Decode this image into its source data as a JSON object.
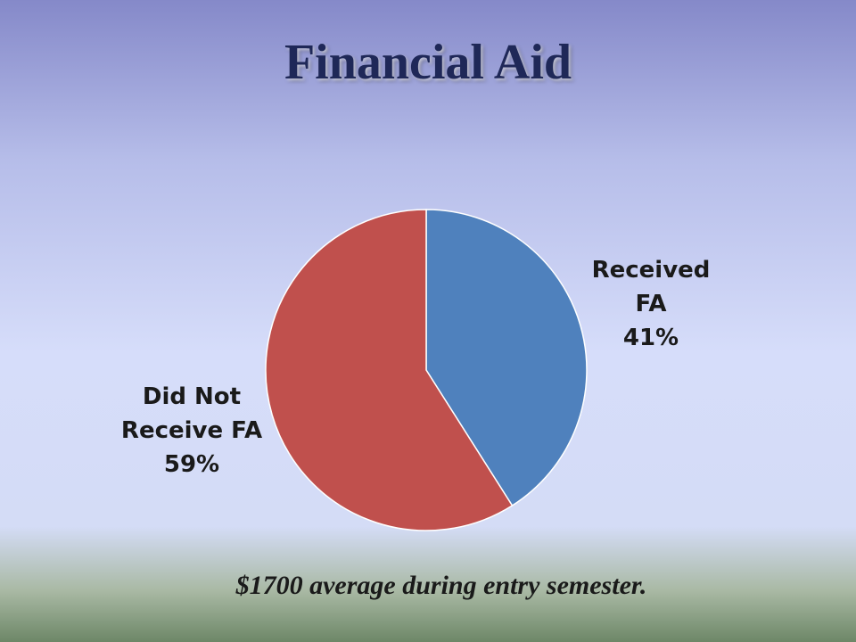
{
  "chart_data": {
    "type": "pie",
    "title": "Financial Aid",
    "categories": [
      "Received FA",
      "Did Not Receive FA"
    ],
    "values": [
      41,
      59
    ],
    "value_labels": [
      "41%",
      "59%"
    ],
    "colors": [
      "#4f81bd",
      "#c0504d"
    ],
    "annotation": "$1700 average during entry semester."
  }
}
